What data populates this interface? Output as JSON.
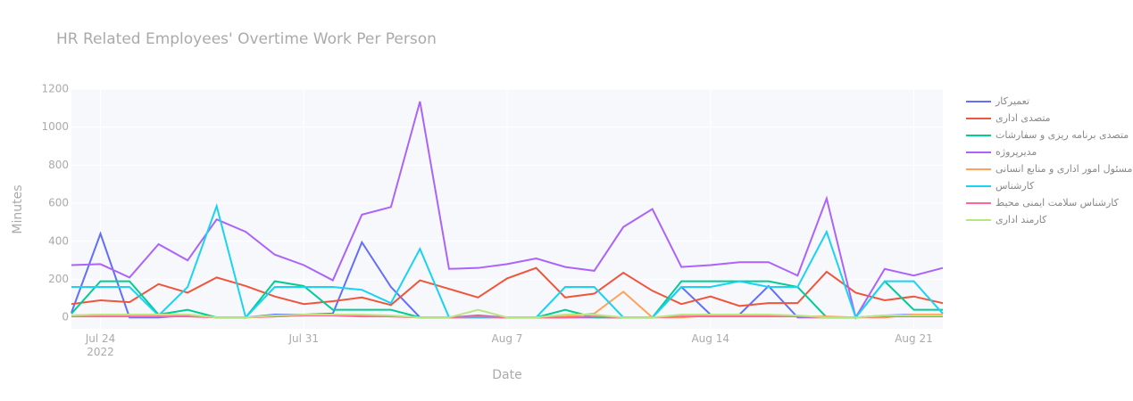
{
  "chart_data": {
    "type": "line",
    "title": "HR Related Employees' Overtime Work Per Person",
    "x_label": "Date",
    "y_label": "Minutes",
    "x": [
      "2022-07-23",
      "2022-07-24",
      "2022-07-25",
      "2022-07-26",
      "2022-07-27",
      "2022-07-28",
      "2022-07-29",
      "2022-07-30",
      "2022-07-31",
      "2022-08-01",
      "2022-08-02",
      "2022-08-03",
      "2022-08-04",
      "2022-08-05",
      "2022-08-06",
      "2022-08-07",
      "2022-08-08",
      "2022-08-09",
      "2022-08-10",
      "2022-08-11",
      "2022-08-12",
      "2022-08-13",
      "2022-08-14",
      "2022-08-15",
      "2022-08-16",
      "2022-08-17",
      "2022-08-18",
      "2022-08-19",
      "2022-08-20",
      "2022-08-21",
      "2022-08-22"
    ],
    "xlim": [
      "2022-07-23",
      "2022-08-22"
    ],
    "xticks": [
      {
        "value": "2022-07-24",
        "label": "Jul 24\n2022"
      },
      {
        "value": "2022-07-31",
        "label": "Jul 31"
      },
      {
        "value": "2022-08-07",
        "label": "Aug 7"
      },
      {
        "value": "2022-08-14",
        "label": "Aug 14"
      },
      {
        "value": "2022-08-21",
        "label": "Aug 21"
      }
    ],
    "ylim": [
      -60,
      1200
    ],
    "yticks": [
      0,
      200,
      400,
      600,
      800,
      1000,
      1200
    ],
    "grid": true,
    "series": [
      {
        "name": "تعمیرکار",
        "color": "#636efa",
        "values": [
          25,
          440,
          0,
          0,
          10,
          0,
          0,
          15,
          15,
          20,
          395,
          160,
          0,
          0,
          10,
          0,
          0,
          0,
          0,
          0,
          0,
          160,
          15,
          15,
          165,
          0,
          0,
          0,
          10,
          15,
          10
        ]
      },
      {
        "name": "متصدی اداری",
        "color": "#EF553B",
        "values": [
          70,
          90,
          80,
          175,
          130,
          210,
          165,
          110,
          70,
          85,
          105,
          65,
          195,
          150,
          105,
          205,
          260,
          105,
          125,
          235,
          140,
          70,
          110,
          60,
          75,
          75,
          240,
          130,
          90,
          110,
          75
        ]
      },
      {
        "name": "متصدی برنامه ریزی و سفارشات",
        "color": "#00cc96",
        "values": [
          20,
          190,
          190,
          15,
          40,
          0,
          0,
          190,
          165,
          40,
          40,
          40,
          0,
          0,
          0,
          0,
          0,
          40,
          0,
          0,
          0,
          190,
          190,
          190,
          190,
          160,
          0,
          0,
          190,
          40,
          40
        ]
      },
      {
        "name": "مدیرپروژه",
        "color": "#ab63fa",
        "values": [
          275,
          280,
          210,
          385,
          300,
          515,
          450,
          330,
          275,
          195,
          540,
          580,
          1135,
          255,
          260,
          280,
          310,
          265,
          245,
          475,
          570,
          265,
          275,
          290,
          290,
          220,
          625,
          0,
          255,
          220,
          260
        ]
      },
      {
        "name": "مسئول امور اداری و منابع انسانی",
        "color": "#FFA15A",
        "values": [
          10,
          15,
          15,
          15,
          15,
          0,
          0,
          5,
          10,
          10,
          10,
          5,
          0,
          0,
          5,
          0,
          0,
          5,
          20,
          135,
          0,
          0,
          10,
          10,
          10,
          5,
          5,
          0,
          0,
          15,
          15
        ]
      },
      {
        "name": "کارشناس",
        "color": "#19d3f3",
        "values": [
          160,
          160,
          160,
          10,
          160,
          585,
          0,
          160,
          160,
          160,
          145,
          75,
          360,
          0,
          0,
          0,
          0,
          160,
          160,
          0,
          0,
          160,
          160,
          190,
          160,
          160,
          450,
          0,
          190,
          190,
          20
        ]
      },
      {
        "name": "کارشناس سلامت ایمنی محیط",
        "color": "#FF6692",
        "values": [
          5,
          5,
          5,
          5,
          5,
          0,
          0,
          5,
          10,
          10,
          5,
          5,
          0,
          0,
          5,
          0,
          0,
          0,
          5,
          0,
          0,
          5,
          5,
          5,
          5,
          5,
          0,
          0,
          5,
          5,
          5
        ]
      },
      {
        "name": "کارمند اداری",
        "color": "#B6E880",
        "values": [
          10,
          15,
          15,
          15,
          15,
          0,
          0,
          10,
          15,
          15,
          15,
          10,
          0,
          0,
          40,
          0,
          0,
          15,
          15,
          0,
          0,
          15,
          15,
          15,
          15,
          10,
          0,
          0,
          10,
          10,
          10
        ]
      }
    ]
  }
}
